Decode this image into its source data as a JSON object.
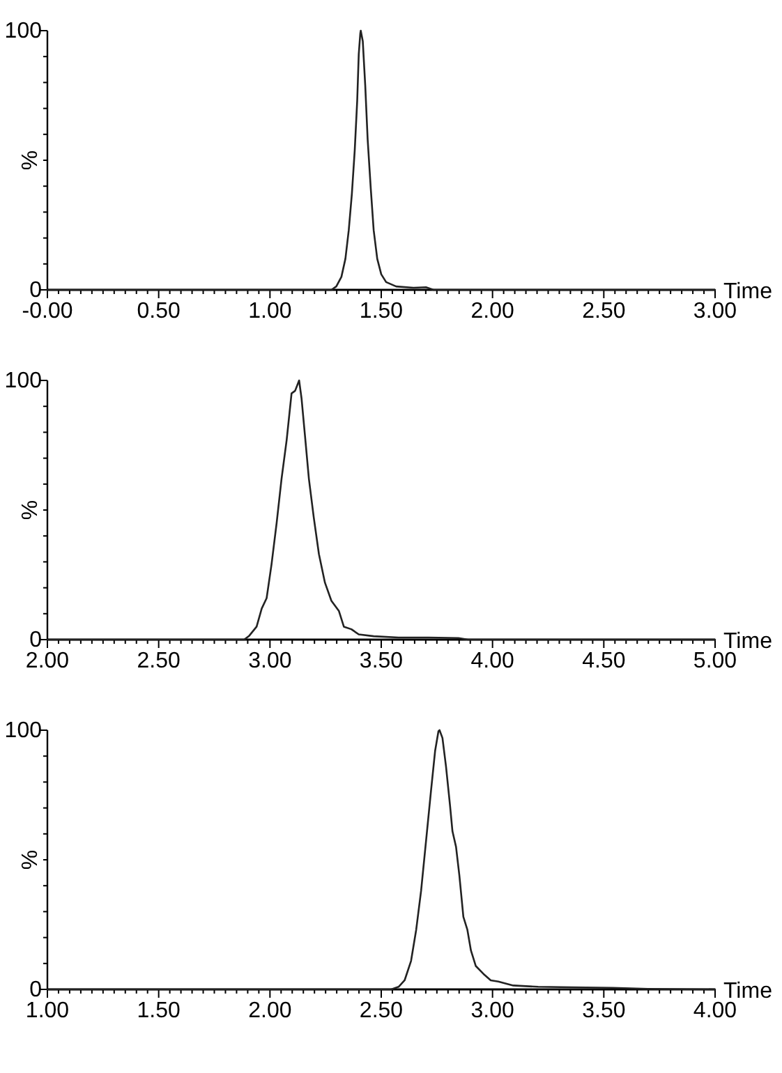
{
  "chart_data": [
    {
      "type": "line",
      "xlabel": "Time",
      "ylabel": "%",
      "color": "#222222",
      "xlim": [
        0,
        3
      ],
      "ylim": [
        0,
        100
      ],
      "xticks": [
        {
          "value": 0,
          "label": "-0.00"
        },
        {
          "value": 0.05,
          "label": null
        },
        {
          "value": 0.1,
          "label": null
        },
        {
          "value": 0.15,
          "label": null
        },
        {
          "value": 0.2,
          "label": null
        },
        {
          "value": 0.25,
          "label": null
        },
        {
          "value": 0.3,
          "label": null
        },
        {
          "value": 0.35,
          "label": null
        },
        {
          "value": 0.4,
          "label": null
        },
        {
          "value": 0.45,
          "label": null
        },
        {
          "value": 0.5,
          "label": "0.50"
        },
        {
          "value": 0.55,
          "label": null
        },
        {
          "value": 0.6,
          "label": null
        },
        {
          "value": 0.65,
          "label": null
        },
        {
          "value": 0.7,
          "label": null
        },
        {
          "value": 0.75,
          "label": null
        },
        {
          "value": 0.8,
          "label": null
        },
        {
          "value": 0.85,
          "label": null
        },
        {
          "value": 0.9,
          "label": null
        },
        {
          "value": 0.95,
          "label": null
        },
        {
          "value": 1,
          "label": "1.00"
        },
        {
          "value": 1.05,
          "label": null
        },
        {
          "value": 1.1,
          "label": null
        },
        {
          "value": 1.15,
          "label": null
        },
        {
          "value": 1.2,
          "label": null
        },
        {
          "value": 1.25,
          "label": null
        },
        {
          "value": 1.3,
          "label": null
        },
        {
          "value": 1.35,
          "label": null
        },
        {
          "value": 1.4,
          "label": null
        },
        {
          "value": 1.45,
          "label": null
        },
        {
          "value": 1.5,
          "label": "1.50"
        },
        {
          "value": 1.55,
          "label": null
        },
        {
          "value": 1.6,
          "label": null
        },
        {
          "value": 1.65,
          "label": null
        },
        {
          "value": 1.7,
          "label": null
        },
        {
          "value": 1.75,
          "label": null
        },
        {
          "value": 1.8,
          "label": null
        },
        {
          "value": 1.85,
          "label": null
        },
        {
          "value": 1.9,
          "label": null
        },
        {
          "value": 1.95,
          "label": null
        },
        {
          "value": 2,
          "label": "2.00"
        },
        {
          "value": 2.05,
          "label": null
        },
        {
          "value": 2.1,
          "label": null
        },
        {
          "value": 2.15,
          "label": null
        },
        {
          "value": 2.2,
          "label": null
        },
        {
          "value": 2.25,
          "label": null
        },
        {
          "value": 2.3,
          "label": null
        },
        {
          "value": 2.35,
          "label": null
        },
        {
          "value": 2.4,
          "label": null
        },
        {
          "value": 2.45,
          "label": null
        },
        {
          "value": 2.5,
          "label": "2.50"
        },
        {
          "value": 2.55,
          "label": null
        },
        {
          "value": 2.6,
          "label": null
        },
        {
          "value": 2.65,
          "label": null
        },
        {
          "value": 2.7,
          "label": null
        },
        {
          "value": 2.75,
          "label": null
        },
        {
          "value": 2.8,
          "label": null
        },
        {
          "value": 2.85,
          "label": null
        },
        {
          "value": 2.9,
          "label": null
        },
        {
          "value": 2.95,
          "label": null
        },
        {
          "value": 3,
          "label": "3.00"
        }
      ],
      "yticks": [
        {
          "value": 0,
          "label": "0"
        },
        {
          "value": 10,
          "label": null
        },
        {
          "value": 20,
          "label": null
        },
        {
          "value": 30,
          "label": null
        },
        {
          "value": 40,
          "label": null
        },
        {
          "value": 50,
          "label": null
        },
        {
          "value": 60,
          "label": null
        },
        {
          "value": 70,
          "label": null
        },
        {
          "value": 80,
          "label": null
        },
        {
          "value": 90,
          "label": null
        },
        {
          "value": 100,
          "label": "100"
        }
      ],
      "x": [
        0,
        1.25,
        1.276,
        1.298,
        1.321,
        1.339,
        1.354,
        1.368,
        1.381,
        1.392,
        1.399,
        1.406,
        1.408,
        1.417,
        1.428,
        1.439,
        1.453,
        1.466,
        1.482,
        1.5,
        1.522,
        1.567,
        1.645,
        1.701,
        1.735,
        3
      ],
      "values": [
        0,
        0,
        0,
        1.3,
        5,
        12,
        23,
        37,
        54,
        73,
        91,
        99,
        100,
        96,
        79,
        58,
        39,
        23,
        12,
        6,
        3,
        1.3,
        0.8,
        1,
        0,
        0
      ]
    },
    {
      "type": "line",
      "xlabel": "Time",
      "ylabel": "%",
      "color": "#222222",
      "xlim": [
        2,
        5
      ],
      "ylim": [
        0,
        100
      ],
      "xticks": [
        {
          "value": 2,
          "label": "2.00"
        },
        {
          "value": 2.05,
          "label": null
        },
        {
          "value": 2.1,
          "label": null
        },
        {
          "value": 2.15,
          "label": null
        },
        {
          "value": 2.2,
          "label": null
        },
        {
          "value": 2.25,
          "label": null
        },
        {
          "value": 2.3,
          "label": null
        },
        {
          "value": 2.35,
          "label": null
        },
        {
          "value": 2.4,
          "label": null
        },
        {
          "value": 2.45,
          "label": null
        },
        {
          "value": 2.5,
          "label": "2.50"
        },
        {
          "value": 2.55,
          "label": null
        },
        {
          "value": 2.6,
          "label": null
        },
        {
          "value": 2.65,
          "label": null
        },
        {
          "value": 2.7,
          "label": null
        },
        {
          "value": 2.75,
          "label": null
        },
        {
          "value": 2.8,
          "label": null
        },
        {
          "value": 2.85,
          "label": null
        },
        {
          "value": 2.9,
          "label": null
        },
        {
          "value": 2.95,
          "label": null
        },
        {
          "value": 3,
          "label": "3.00"
        },
        {
          "value": 3.05,
          "label": null
        },
        {
          "value": 3.1,
          "label": null
        },
        {
          "value": 3.15,
          "label": null
        },
        {
          "value": 3.2,
          "label": null
        },
        {
          "value": 3.25,
          "label": null
        },
        {
          "value": 3.3,
          "label": null
        },
        {
          "value": 3.35,
          "label": null
        },
        {
          "value": 3.4,
          "label": null
        },
        {
          "value": 3.45,
          "label": null
        },
        {
          "value": 3.5,
          "label": "3.50"
        },
        {
          "value": 3.55,
          "label": null
        },
        {
          "value": 3.6,
          "label": null
        },
        {
          "value": 3.65,
          "label": null
        },
        {
          "value": 3.7,
          "label": null
        },
        {
          "value": 3.75,
          "label": null
        },
        {
          "value": 3.8,
          "label": null
        },
        {
          "value": 3.85,
          "label": null
        },
        {
          "value": 3.9,
          "label": null
        },
        {
          "value": 3.95,
          "label": null
        },
        {
          "value": 4,
          "label": "4.00"
        },
        {
          "value": 4.05,
          "label": null
        },
        {
          "value": 4.1,
          "label": null
        },
        {
          "value": 4.15,
          "label": null
        },
        {
          "value": 4.2,
          "label": null
        },
        {
          "value": 4.25,
          "label": null
        },
        {
          "value": 4.3,
          "label": null
        },
        {
          "value": 4.35,
          "label": null
        },
        {
          "value": 4.4,
          "label": null
        },
        {
          "value": 4.45,
          "label": null
        },
        {
          "value": 4.5,
          "label": "4.50"
        },
        {
          "value": 4.55,
          "label": null
        },
        {
          "value": 4.6,
          "label": null
        },
        {
          "value": 4.65,
          "label": null
        },
        {
          "value": 4.7,
          "label": null
        },
        {
          "value": 4.75,
          "label": null
        },
        {
          "value": 4.8,
          "label": null
        },
        {
          "value": 4.85,
          "label": null
        },
        {
          "value": 4.9,
          "label": null
        },
        {
          "value": 4.95,
          "label": null
        },
        {
          "value": 5,
          "label": "5.00"
        }
      ],
      "yticks": [
        {
          "value": 0,
          "label": "0"
        },
        {
          "value": 10,
          "label": null
        },
        {
          "value": 20,
          "label": null
        },
        {
          "value": 30,
          "label": null
        },
        {
          "value": 40,
          "label": null
        },
        {
          "value": 50,
          "label": null
        },
        {
          "value": 60,
          "label": null
        },
        {
          "value": 70,
          "label": null
        },
        {
          "value": 80,
          "label": null
        },
        {
          "value": 90,
          "label": null
        },
        {
          "value": 100,
          "label": "100"
        }
      ],
      "x": [
        2,
        2.884,
        2.907,
        2.94,
        2.963,
        2.985,
        3.007,
        3.03,
        3.052,
        3.075,
        3.097,
        3.113,
        3.131,
        3.142,
        3.157,
        3.175,
        3.197,
        3.22,
        3.247,
        3.276,
        3.31,
        3.332,
        3.366,
        3.399,
        3.466,
        3.578,
        3.713,
        3.847,
        3.89,
        5
      ],
      "values": [
        0,
        0,
        1.5,
        5,
        12,
        16,
        29,
        45,
        62,
        77,
        95,
        96,
        100,
        93,
        79,
        62,
        47,
        33,
        22,
        15,
        11,
        5,
        4,
        2,
        1.3,
        0.8,
        0.8,
        0.6,
        0,
        0
      ]
    },
    {
      "type": "line",
      "xlabel": "Time",
      "ylabel": "%",
      "color": "#222222",
      "xlim": [
        1,
        4
      ],
      "ylim": [
        0,
        100
      ],
      "xticks": [
        {
          "value": 1,
          "label": "1.00"
        },
        {
          "value": 1.05,
          "label": null
        },
        {
          "value": 1.1,
          "label": null
        },
        {
          "value": 1.15,
          "label": null
        },
        {
          "value": 1.2,
          "label": null
        },
        {
          "value": 1.25,
          "label": null
        },
        {
          "value": 1.3,
          "label": null
        },
        {
          "value": 1.35,
          "label": null
        },
        {
          "value": 1.4,
          "label": null
        },
        {
          "value": 1.45,
          "label": null
        },
        {
          "value": 1.5,
          "label": "1.50"
        },
        {
          "value": 1.55,
          "label": null
        },
        {
          "value": 1.6,
          "label": null
        },
        {
          "value": 1.65,
          "label": null
        },
        {
          "value": 1.7,
          "label": null
        },
        {
          "value": 1.75,
          "label": null
        },
        {
          "value": 1.8,
          "label": null
        },
        {
          "value": 1.85,
          "label": null
        },
        {
          "value": 1.9,
          "label": null
        },
        {
          "value": 1.95,
          "label": null
        },
        {
          "value": 2,
          "label": "2.00"
        },
        {
          "value": 2.05,
          "label": null
        },
        {
          "value": 2.1,
          "label": null
        },
        {
          "value": 2.15,
          "label": null
        },
        {
          "value": 2.2,
          "label": null
        },
        {
          "value": 2.25,
          "label": null
        },
        {
          "value": 2.3,
          "label": null
        },
        {
          "value": 2.35,
          "label": null
        },
        {
          "value": 2.4,
          "label": null
        },
        {
          "value": 2.45,
          "label": null
        },
        {
          "value": 2.5,
          "label": "2.50"
        },
        {
          "value": 2.55,
          "label": null
        },
        {
          "value": 2.6,
          "label": null
        },
        {
          "value": 2.65,
          "label": null
        },
        {
          "value": 2.7,
          "label": null
        },
        {
          "value": 2.75,
          "label": null
        },
        {
          "value": 2.8,
          "label": null
        },
        {
          "value": 2.85,
          "label": null
        },
        {
          "value": 2.9,
          "label": null
        },
        {
          "value": 2.95,
          "label": null
        },
        {
          "value": 3,
          "label": "3.00"
        },
        {
          "value": 3.05,
          "label": null
        },
        {
          "value": 3.1,
          "label": null
        },
        {
          "value": 3.15,
          "label": null
        },
        {
          "value": 3.2,
          "label": null
        },
        {
          "value": 3.25,
          "label": null
        },
        {
          "value": 3.3,
          "label": null
        },
        {
          "value": 3.35,
          "label": null
        },
        {
          "value": 3.4,
          "label": null
        },
        {
          "value": 3.45,
          "label": null
        },
        {
          "value": 3.5,
          "label": "3.50"
        },
        {
          "value": 3.55,
          "label": null
        },
        {
          "value": 3.6,
          "label": null
        },
        {
          "value": 3.65,
          "label": null
        },
        {
          "value": 3.7,
          "label": null
        },
        {
          "value": 3.75,
          "label": null
        },
        {
          "value": 3.8,
          "label": null
        },
        {
          "value": 3.85,
          "label": null
        },
        {
          "value": 3.9,
          "label": null
        },
        {
          "value": 3.95,
          "label": null
        },
        {
          "value": 4,
          "label": "4.00"
        }
      ],
      "yticks": [
        {
          "value": 0,
          "label": "0"
        },
        {
          "value": 10,
          "label": null
        },
        {
          "value": 20,
          "label": null
        },
        {
          "value": 30,
          "label": null
        },
        {
          "value": 40,
          "label": null
        },
        {
          "value": 50,
          "label": null
        },
        {
          "value": 60,
          "label": null
        },
        {
          "value": 70,
          "label": null
        },
        {
          "value": 80,
          "label": null
        },
        {
          "value": 90,
          "label": null
        },
        {
          "value": 100,
          "label": "100"
        }
      ],
      "x": [
        1,
        2.545,
        2.578,
        2.605,
        2.634,
        2.657,
        2.679,
        2.701,
        2.724,
        2.742,
        2.757,
        2.762,
        2.775,
        2.791,
        2.809,
        2.82,
        2.836,
        2.851,
        2.869,
        2.887,
        2.903,
        2.925,
        2.959,
        2.992,
        3.026,
        3.093,
        3.205,
        3.362,
        3.541,
        3.698,
        4
      ],
      "values": [
        0,
        0,
        1,
        3.5,
        11,
        23,
        38,
        57,
        77,
        92,
        99.6,
        100,
        97,
        86,
        71,
        61,
        55,
        44,
        28,
        23,
        15,
        9,
        6,
        3.5,
        3,
        1.5,
        1,
        0.8,
        0.6,
        0.2,
        0
      ]
    }
  ]
}
